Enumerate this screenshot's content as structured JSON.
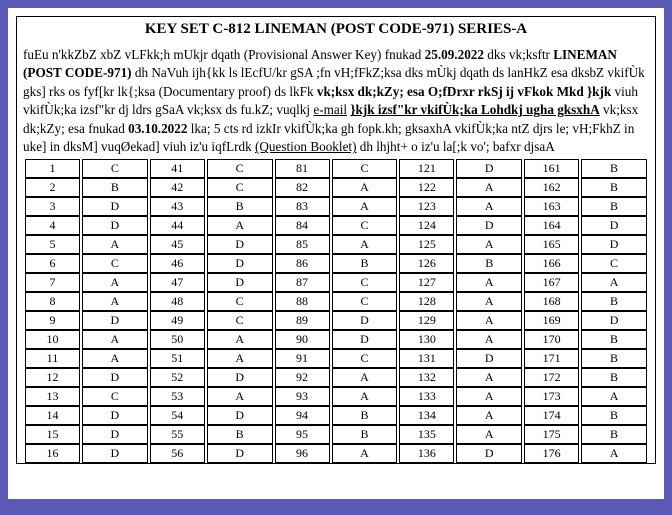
{
  "title": "KEY SET   C-812  LINEMAN (POST CODE-971)  SERIES-A",
  "notice": {
    "line1_a": "fuEu n'kkZbZ xbZ vLFkk;h mUkjr dqath",
    "line1_paren": "(Provisional Answer Key)",
    "line1_b": "fnukad",
    "line1_date": "25.09.2022",
    "line1_c": "dks vk;ksftr",
    "line1_post": "LINEMAN (POST CODE-971)",
    "line1_d": "dh NaVuh ijh{kk ls lEcfU/kr gSA ;fn vH;fFkZ;ksa dks mÙkj dqath ds lanHkZ esa dksbZ vkifÙk gks] rks os fyf[kr lk{;ksa",
    "doc_proof": "(Documentary proof)",
    "line2_a": "ds lkFk",
    "line2_bold": "vk;ksx dk;kZy; esa O;fDrxr rkSj ij vFkok Mkd }kjk",
    "line2_b": "viuh vkifÙk;ka izsf\"kr dj ldrs gSaA vk;ksx ds fu.kZ; vuqlkj",
    "email": "e-mail",
    "line3_bold": "}kjk  izsf\"kr  vkifÙk;ka  Lohdkj  ugha gksxhA",
    "line3_a": "vk;ksx dk;kZy; esa fnukad",
    "line3_date": "03.10.2022",
    "line3_b": "lka; 5 cts rd izkIr vkifÙk;ka gh fopk.kh; gksaxhA vkifÙk;ka ntZ djrs le; vH;FkhZ  in uke] in dksM] vuqØekad] viuh iz'u iqfLrdk",
    "qbooklet": "(Question Booklet)",
    "line4": "dh lhjht+ o iz'u la[;k vo'; bafxr djsaA"
  },
  "columns": [
    {
      "start": 1,
      "answers": [
        "C",
        "B",
        "D",
        "D",
        "A",
        "C",
        "A",
        "A",
        "D",
        "A",
        "A",
        "D",
        "C",
        "D",
        "D",
        "D"
      ]
    },
    {
      "start": 41,
      "answers": [
        "C",
        "C",
        "B",
        "A",
        "D",
        "D",
        "D",
        "C",
        "C",
        "A",
        "A",
        "D",
        "A",
        "D",
        "B",
        "D"
      ]
    },
    {
      "start": 81,
      "answers": [
        "C",
        "A",
        "A",
        "C",
        "A",
        "B",
        "C",
        "C",
        "D",
        "D",
        "C",
        "A",
        "A",
        "B",
        "B",
        "A"
      ]
    },
    {
      "start": 121,
      "answers": [
        "D",
        "A",
        "A",
        "D",
        "A",
        "B",
        "A",
        "A",
        "A",
        "A",
        "D",
        "A",
        "A",
        "A",
        "A",
        "D"
      ]
    },
    {
      "start": 161,
      "answers": [
        "B",
        "B",
        "B",
        "D",
        "D",
        "C",
        "A",
        "B",
        "D",
        "B",
        "B",
        "B",
        "A",
        "B",
        "B",
        "A"
      ]
    }
  ],
  "rows": 16
}
